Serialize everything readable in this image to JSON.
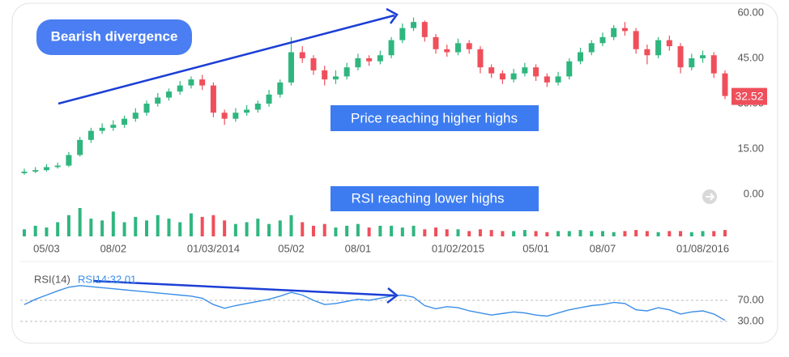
{
  "chart_data": [
    {
      "type": "candlestick",
      "categories": [
        null,
        null,
        "05/03",
        null,
        null,
        null,
        null,
        null,
        "08/02",
        null,
        null,
        null,
        null,
        null,
        null,
        null,
        null,
        "01/03/2014",
        null,
        null,
        null,
        null,
        null,
        null,
        "05/02",
        null,
        null,
        null,
        null,
        null,
        "08/01",
        null,
        null,
        null,
        null,
        null,
        null,
        null,
        null,
        "01/02/2015",
        null,
        null,
        null,
        null,
        null,
        null,
        "05/01",
        null,
        null,
        null,
        null,
        null,
        "08/07",
        null,
        null,
        null,
        null,
        null,
        null,
        null,
        null,
        "01/08/2016",
        null,
        null
      ],
      "open": [
        7,
        7.5,
        8,
        9,
        9.5,
        13,
        18,
        21,
        22,
        23,
        25,
        27,
        30,
        32,
        34,
        36,
        38,
        36,
        27,
        25,
        27,
        28,
        30,
        33,
        37,
        47,
        45,
        41,
        38,
        39,
        42,
        45,
        44,
        46,
        51,
        55,
        57,
        52,
        48,
        47,
        50,
        48,
        42,
        40,
        38,
        40,
        42,
        39,
        37,
        39,
        44,
        47,
        50,
        52,
        55,
        54,
        48,
        46,
        51,
        49,
        42,
        45,
        46,
        40
      ],
      "high": [
        8.5,
        9,
        10,
        10.5,
        14,
        19,
        22,
        23.5,
        24.5,
        26,
        28.5,
        31,
        33.5,
        35,
        37.5,
        39,
        39.5,
        37,
        28,
        28.5,
        29.5,
        31,
        34.5,
        38,
        52,
        49,
        46,
        42.5,
        41,
        43.5,
        46.5,
        46,
        47.5,
        52,
        56.5,
        58.5,
        57.5,
        53,
        49.5,
        51.5,
        51,
        49,
        43,
        41,
        41.5,
        43.5,
        43,
        40,
        40.5,
        45,
        48.5,
        51,
        53.5,
        56,
        57,
        55,
        49.5,
        52,
        52.5,
        50,
        46.5,
        47.5,
        47,
        41
      ],
      "low": [
        6.5,
        7,
        7.5,
        8.5,
        9,
        12.5,
        17,
        20,
        21,
        22,
        24,
        26,
        29,
        31,
        33,
        35,
        34.5,
        25.5,
        23,
        24,
        26,
        27,
        29,
        32,
        36,
        43.5,
        39.5,
        36,
        36.5,
        38,
        41,
        42.5,
        43,
        45,
        50,
        54,
        50.5,
        46.5,
        45.5,
        46,
        46.5,
        40,
        38.5,
        36.5,
        37,
        39,
        37.5,
        35.5,
        36,
        38,
        43,
        46,
        49,
        51,
        52.5,
        46.5,
        43,
        45,
        47.5,
        40,
        41,
        43.5,
        38.5,
        31.5
      ],
      "close": [
        7.5,
        8,
        9,
        9.5,
        13,
        18,
        21,
        22,
        23,
        25,
        27,
        30,
        32,
        34,
        36,
        38,
        36,
        27,
        25,
        27,
        28,
        30,
        33,
        37,
        47,
        45,
        41,
        38,
        39,
        42,
        45,
        44,
        46,
        51,
        55,
        57,
        52,
        48,
        47,
        50,
        48,
        42,
        40,
        38,
        40,
        42,
        39,
        37,
        39,
        44,
        47,
        50,
        52,
        55,
        54,
        48,
        46,
        51,
        49,
        42,
        45,
        46,
        40,
        32.52
      ],
      "volume": [
        20,
        30,
        25,
        40,
        60,
        80,
        50,
        45,
        70,
        40,
        55,
        45,
        60,
        50,
        40,
        65,
        55,
        60,
        45,
        35,
        40,
        50,
        35,
        45,
        60,
        40,
        30,
        35,
        25,
        30,
        35,
        25,
        30,
        30,
        25,
        30,
        20,
        25,
        20,
        20,
        15,
        20,
        18,
        15,
        15,
        18,
        15,
        12,
        15,
        15,
        18,
        15,
        15,
        12,
        15,
        18,
        15,
        12,
        15,
        15,
        12,
        15,
        15,
        18
      ],
      "up_color": "#2fb67f",
      "down_color": "#ef4f5b",
      "ylim": [
        -2,
        62
      ],
      "yticks": [
        {
          "value": 0,
          "label": "0.00"
        },
        {
          "value": 15,
          "label": "15.00"
        },
        {
          "value": 30,
          "label": "30.00"
        },
        {
          "value": 45,
          "label": "45.00"
        },
        {
          "value": 60,
          "label": "60.00"
        }
      ],
      "last_price_label": "32.52",
      "annotations": [
        "Bearish divergence",
        "Price reaching higher highs",
        "RSI reaching lower highs"
      ]
    },
    {
      "type": "line",
      "title": "RSI(14)",
      "legend": "RSI14:32.01",
      "color": "#3a8ee6",
      "values": [
        62,
        72,
        80,
        88,
        95,
        98,
        96,
        94,
        92,
        90,
        88,
        86,
        84,
        82,
        80,
        78,
        74,
        62,
        55,
        60,
        64,
        68,
        72,
        78,
        85,
        80,
        70,
        62,
        64,
        68,
        72,
        70,
        74,
        78,
        80,
        76,
        60,
        54,
        58,
        56,
        50,
        46,
        42,
        45,
        48,
        46,
        42,
        40,
        46,
        52,
        56,
        60,
        62,
        66,
        64,
        52,
        50,
        56,
        52,
        44,
        48,
        50,
        44,
        32.01
      ],
      "ylim": [
        20,
        118
      ],
      "yticks": [
        {
          "value": 30,
          "label": "30.00"
        },
        {
          "value": 70,
          "label": "70.00"
        }
      ]
    }
  ]
}
